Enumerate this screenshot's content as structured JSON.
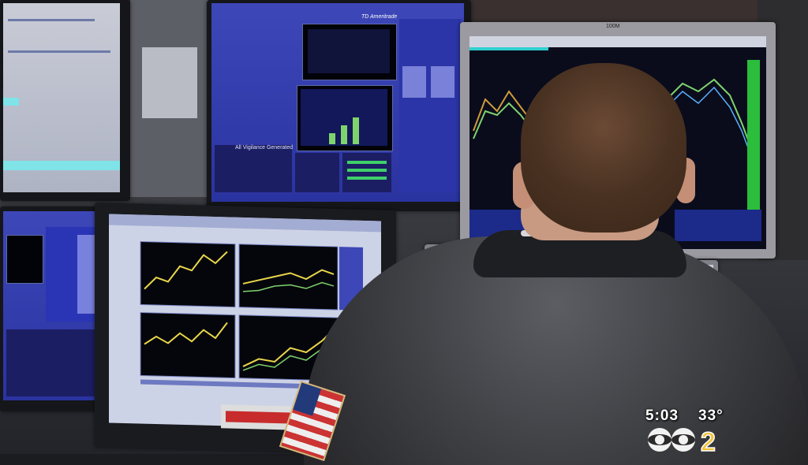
{
  "overlay": {
    "time": "5:03",
    "temperature": "33°",
    "channel_number": "2"
  },
  "monitors": {
    "top_center_brand": "TD Ameritrade",
    "top_center_header": "All Vigilance Generated",
    "top_right_tag": "100M"
  },
  "colors": {
    "screen_blue": "#3d47b8",
    "chart_green": "#7fd36d",
    "overlay_text": "#ffffff"
  }
}
